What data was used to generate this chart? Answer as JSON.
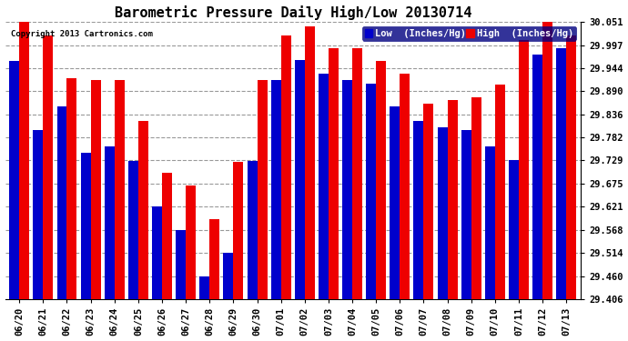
{
  "title": "Barometric Pressure Daily High/Low 20130714",
  "copyright": "Copyright 2013 Cartronics.com",
  "legend_low": "Low  (Inches/Hg)",
  "legend_high": "High  (Inches/Hg)",
  "dates": [
    "06/20",
    "06/21",
    "06/22",
    "06/23",
    "06/24",
    "06/25",
    "06/26",
    "06/27",
    "06/28",
    "06/29",
    "06/30",
    "07/01",
    "07/02",
    "07/03",
    "07/04",
    "07/05",
    "07/06",
    "07/07",
    "07/08",
    "07/09",
    "07/10",
    "07/11",
    "07/12",
    "07/13"
  ],
  "low_values": [
    29.96,
    29.8,
    29.854,
    29.746,
    29.762,
    29.728,
    29.622,
    29.568,
    29.46,
    29.514,
    29.728,
    29.916,
    29.962,
    29.93,
    29.916,
    29.908,
    29.854,
    29.82,
    29.806,
    29.8,
    29.762,
    29.73,
    29.976,
    29.99
  ],
  "high_values": [
    30.051,
    30.02,
    29.92,
    29.916,
    29.916,
    29.82,
    29.7,
    29.67,
    29.592,
    29.726,
    29.916,
    30.02,
    30.04,
    29.99,
    29.99,
    29.96,
    29.93,
    29.86,
    29.87,
    29.876,
    29.906,
    30.01,
    30.051,
    30.02
  ],
  "ylim": [
    29.406,
    30.051
  ],
  "yticks": [
    29.406,
    29.46,
    29.514,
    29.568,
    29.621,
    29.675,
    29.729,
    29.782,
    29.836,
    29.89,
    29.944,
    29.997,
    30.051
  ],
  "bar_width": 0.42,
  "low_color": "#0000cc",
  "high_color": "#ee0000",
  "bg_color": "#ffffff",
  "grid_color": "#999999",
  "title_fontsize": 11,
  "tick_fontsize": 7.5,
  "legend_fontsize": 7.5
}
